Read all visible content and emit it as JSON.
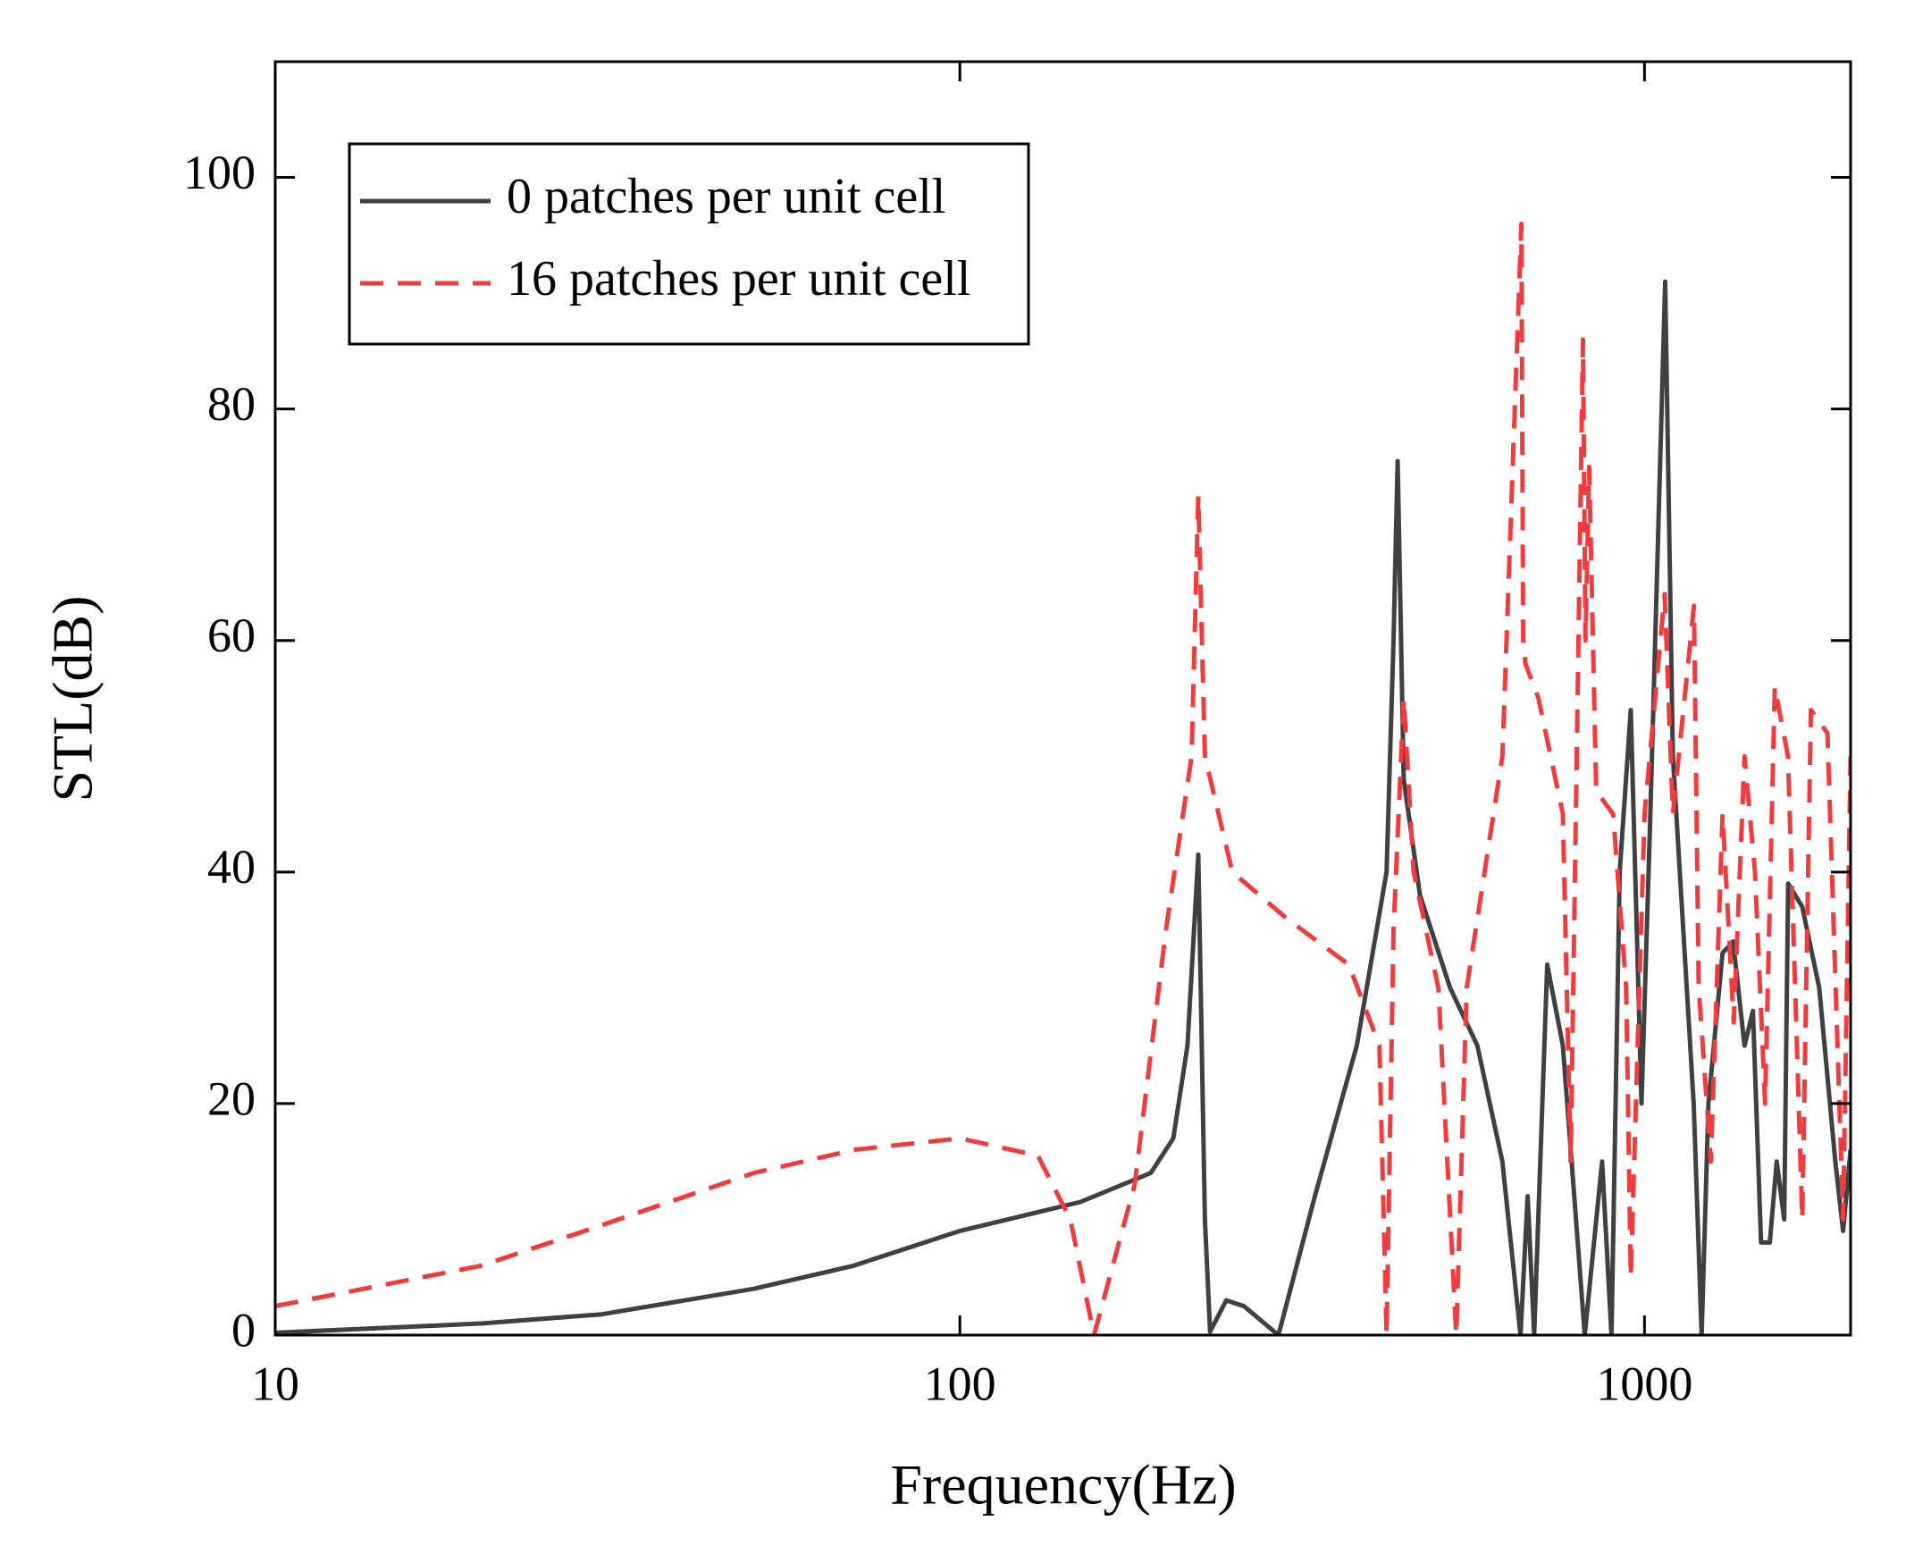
{
  "chart_data": {
    "type": "line",
    "xlabel": "Frequency(Hz)",
    "ylabel": "STL(dB)",
    "xscale": "log",
    "xlim": [
      10,
      2000
    ],
    "xticks": [
      10,
      100,
      1000
    ],
    "ylim": [
      0,
      110
    ],
    "yticks": [
      0,
      20,
      40,
      60,
      80,
      100
    ],
    "legend": "upper left",
    "series": [
      {
        "name": "0 patches per unit cell",
        "color": "#404040",
        "linestyle": "solid",
        "x": [
          10,
          20,
          30,
          50,
          70,
          100,
          150,
          190,
          205,
          215,
          223,
          228,
          232,
          245,
          260,
          292,
          330,
          380,
          420,
          430,
          436,
          445,
          470,
          520,
          570,
          620,
          659,
          675,
          690,
          721,
          760,
          818,
          867,
          895,
          920,
          955,
          990,
          1020,
          1072,
          1100,
          1180,
          1212,
          1240,
          1300,
          1347,
          1400,
          1440,
          1480,
          1524,
          1560,
          1600,
          1621,
          1700,
          1800,
          1900,
          1950,
          2000
        ],
        "values": [
          0.2,
          1,
          1.8,
          4,
          6,
          9,
          11.5,
          14,
          17,
          25,
          41.5,
          10,
          0.3,
          3,
          2.5,
          0,
          12,
          25,
          40,
          60,
          75.5,
          48,
          38,
          30,
          25,
          15,
          0,
          12,
          0,
          32,
          25,
          0,
          15,
          0,
          40,
          54,
          20,
          45,
          91,
          50,
          20,
          0,
          20,
          33,
          34,
          25,
          28,
          8,
          8,
          15,
          10,
          39,
          37,
          30,
          15,
          9,
          16
        ]
      },
      {
        "name": "16 patches per unit cell",
        "color": "#f03c3c",
        "linestyle": "dashed",
        "x": [
          10,
          20,
          30,
          50,
          70,
          100,
          130,
          145,
          157,
          180,
          200,
          218,
          223,
          228,
          250,
          300,
          370,
          410,
          420,
          430,
          445,
          460,
          500,
          531,
          550,
          620,
          661,
          665,
          670,
          700,
          760,
          780,
          813,
          820,
          830,
          850,
          900,
          940,
          955,
          1000,
          1070,
          1100,
          1181,
          1200,
          1250,
          1300,
          1350,
          1400,
          1450,
          1500,
          1550,
          1620,
          1700,
          1750,
          1850,
          1950,
          2000
        ],
        "values": [
          2.5,
          6,
          9.5,
          14,
          16,
          17,
          15.5,
          10,
          0,
          13,
          35,
          50,
          72.5,
          50,
          40,
          36,
          32,
          25,
          0,
          35,
          55,
          40,
          30,
          0,
          30,
          50,
          96,
          60,
          58,
          55,
          45,
          15,
          86,
          60,
          75,
          47,
          45,
          30,
          5,
          45,
          64,
          45,
          63,
          30,
          15,
          45,
          27,
          50,
          40,
          20,
          56,
          50,
          10,
          54,
          52,
          10,
          50
        ]
      }
    ]
  }
}
